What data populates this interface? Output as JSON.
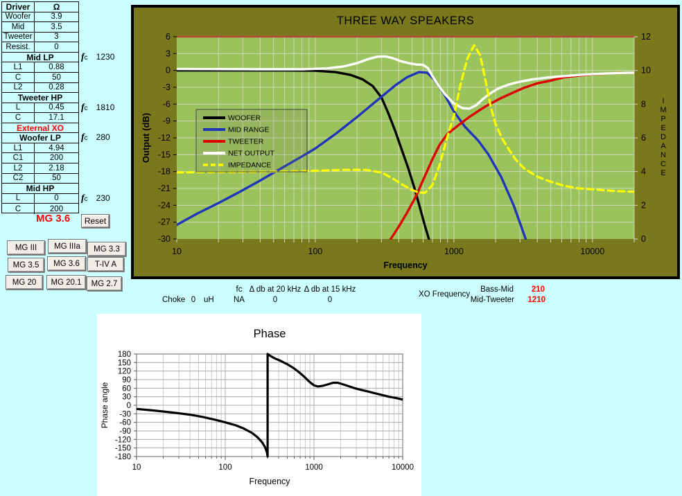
{
  "colors": {
    "page_bg": "#CCFFFF",
    "chart_bg": "#7A781D",
    "plot_bg": "#9BC35D",
    "grid_main": "#D9DDCE",
    "top_line": "#B5483A",
    "value_red": "#FF0000",
    "phase_grid": "#A8A8A8",
    "phase_grid_minor": "#BFBFBF"
  },
  "left_panel": {
    "table_rows": [
      {
        "type": "head",
        "c1": "Driver",
        "c2": "Ω"
      },
      {
        "type": "data",
        "c1": "Woofer",
        "c2": "3.9"
      },
      {
        "type": "data",
        "c1": "Mid",
        "c2": "3.5"
      },
      {
        "type": "data",
        "c1": "Tweeter",
        "c2": "3"
      },
      {
        "type": "data",
        "c1": "Resist.",
        "c2": "0"
      },
      {
        "type": "section",
        "label": "Mid LP"
      },
      {
        "type": "data",
        "c1": "L1",
        "c2": "0.88"
      },
      {
        "type": "data",
        "c1": "C",
        "c2": "50"
      },
      {
        "type": "data",
        "c1": "L2",
        "c2": "0.28"
      },
      {
        "type": "section",
        "label": "Tweeter HP"
      },
      {
        "type": "data",
        "c1": "L",
        "c2": "0.45"
      },
      {
        "type": "data",
        "c1": "C",
        "c2": "17.1"
      },
      {
        "type": "section-red",
        "label": "External XO"
      },
      {
        "type": "section",
        "label": "Woofer LP"
      },
      {
        "type": "data",
        "c1": "L1",
        "c2": "4.94"
      },
      {
        "type": "data",
        "c1": "C1",
        "c2": "200"
      },
      {
        "type": "data",
        "c1": "L2",
        "c2": "2.18"
      },
      {
        "type": "data",
        "c1": "C2",
        "c2": "50"
      },
      {
        "type": "section",
        "label": "Mid HP"
      },
      {
        "type": "data",
        "c1": "L",
        "c2": "0"
      },
      {
        "type": "data",
        "c1": "C",
        "c2": "200"
      }
    ],
    "fc_prefix": "f",
    "fc_sub": "c",
    "fc_values": [
      "1230",
      "1810",
      "280",
      "230"
    ],
    "model_label": "MG 3.6",
    "reset_label": "Reset",
    "model_buttons": [
      "MG III",
      "MG IIIa",
      "MG 3.3",
      "MG 3.5",
      "MG 3.6",
      "T-IV A",
      "MG 20",
      "MG 20.1",
      "MG 2.7"
    ]
  },
  "below_chart": {
    "choke_label": "Choke",
    "choke_value": "0",
    "choke_unit": "uH",
    "fc_label": "fc",
    "fc_value": "NA",
    "d20_label": "Δ db at 20 kHz",
    "d20_value": "0",
    "d15_label": "Δ db at 15 kHz",
    "d15_value": "0",
    "xo_label": "XO Frequency",
    "bass_mid_label": "Bass-Mid",
    "bass_mid_value": "210",
    "mid_tweeter_label": "Mid-Tweeter",
    "mid_tweeter_value": "1210"
  },
  "chart_data": [
    {
      "type": "line",
      "title": "THREE  WAY SPEAKERS",
      "xlabel": "Frequency",
      "ylabel": "Output (dB)",
      "y2label": "IMPEDANCE",
      "xscale": "log",
      "xlim": [
        10,
        20000
      ],
      "ylim": [
        -30,
        6
      ],
      "y2lim": [
        0,
        12
      ],
      "xticks": [
        10,
        100,
        1000,
        10000
      ],
      "yticks": [
        6,
        3,
        0,
        -3,
        -6,
        -9,
        -12,
        -15,
        -18,
        -21,
        -24,
        -27,
        -30
      ],
      "y2ticks": [
        12,
        10,
        8,
        6,
        4,
        2,
        0
      ],
      "grid": true,
      "legend_position": "upper-left-inside",
      "top_line_value": 6,
      "series": [
        {
          "name": "WOOFER",
          "color": "#000000",
          "dash": null,
          "axis": "y1",
          "points": [
            [
              10,
              0
            ],
            [
              60,
              0
            ],
            [
              100,
              -0.05
            ],
            [
              140,
              -0.3
            ],
            [
              180,
              -0.8
            ],
            [
              220,
              -1.6
            ],
            [
              260,
              -2.8
            ],
            [
              300,
              -4.8
            ],
            [
              335,
              -7.5
            ],
            [
              380,
              -11
            ],
            [
              430,
              -14.8
            ],
            [
              470,
              -17.5
            ],
            [
              520,
              -21
            ],
            [
              570,
              -24.5
            ],
            [
              615,
              -27.5
            ],
            [
              660,
              -30
            ]
          ]
        },
        {
          "name": "MID RANGE",
          "color": "#2233BB",
          "dash": null,
          "axis": "y1",
          "points": [
            [
              10,
              -27.5
            ],
            [
              14,
              -25.5
            ],
            [
              20,
              -23.6
            ],
            [
              28,
              -21.7
            ],
            [
              40,
              -19.6
            ],
            [
              56,
              -17.5
            ],
            [
              80,
              -15.3
            ],
            [
              100,
              -13.9
            ],
            [
              140,
              -11.3
            ],
            [
              200,
              -8.3
            ],
            [
              280,
              -5.3
            ],
            [
              380,
              -2.6
            ],
            [
              460,
              -1.2
            ],
            [
              560,
              -0.3
            ],
            [
              640,
              -0.4
            ],
            [
              720,
              -1.6
            ],
            [
              850,
              -4.2
            ],
            [
              1000,
              -7.3
            ],
            [
              1200,
              -10
            ],
            [
              1500,
              -12.5
            ],
            [
              1780,
              -15
            ],
            [
              2200,
              -19
            ],
            [
              2700,
              -24
            ],
            [
              3300,
              -30
            ]
          ]
        },
        {
          "name": "TWEETER",
          "color": "#DD0000",
          "dash": null,
          "axis": "y1",
          "points": [
            [
              350,
              -30
            ],
            [
              400,
              -27.8
            ],
            [
              460,
              -25.3
            ],
            [
              530,
              -22.5
            ],
            [
              600,
              -19.5
            ],
            [
              700,
              -15.8
            ],
            [
              790,
              -13.2
            ],
            [
              900,
              -11.3
            ],
            [
              1070,
              -9.8
            ],
            [
              1290,
              -8.3
            ],
            [
              1550,
              -7
            ],
            [
              1780,
              -6.1
            ],
            [
              2200,
              -4.9
            ],
            [
              2700,
              -3.9
            ],
            [
              3200,
              -3.1
            ],
            [
              4000,
              -2.3
            ],
            [
              5000,
              -1.8
            ],
            [
              6300,
              -1.2
            ],
            [
              8000,
              -0.9
            ],
            [
              10000,
              -0.7
            ],
            [
              14000,
              -0.5
            ],
            [
              20000,
              -0.4
            ]
          ]
        },
        {
          "name": "NET OUTPUT",
          "color": "#FFFFFF",
          "dash": null,
          "axis": "y1",
          "points": [
            [
              10,
              0.25
            ],
            [
              40,
              0.2
            ],
            [
              80,
              0.2
            ],
            [
              120,
              0.35
            ],
            [
              160,
              0.7
            ],
            [
              200,
              1.3
            ],
            [
              240,
              2
            ],
            [
              280,
              2.45
            ],
            [
              320,
              2.5
            ],
            [
              360,
              2.2
            ],
            [
              420,
              1.6
            ],
            [
              480,
              1.25
            ],
            [
              540,
              1.05
            ],
            [
              600,
              1
            ],
            [
              650,
              0.4
            ],
            [
              700,
              -1
            ],
            [
              780,
              -2.8
            ],
            [
              860,
              -4.2
            ],
            [
              1000,
              -5.9
            ],
            [
              1150,
              -6.7
            ],
            [
              1290,
              -6.8
            ],
            [
              1450,
              -6.2
            ],
            [
              1600,
              -5.2
            ],
            [
              1800,
              -4.2
            ],
            [
              2100,
              -3.2
            ],
            [
              2500,
              -2.5
            ],
            [
              3000,
              -2
            ],
            [
              3700,
              -1.6
            ],
            [
              5000,
              -1.2
            ],
            [
              6300,
              -1
            ],
            [
              8000,
              -0.8
            ],
            [
              10000,
              -0.65
            ],
            [
              14000,
              -0.5
            ],
            [
              20000,
              -0.4
            ]
          ]
        },
        {
          "name": "IMPEDANCE",
          "color": "#FFFF00",
          "dash": [
            9,
            6
          ],
          "axis": "y2",
          "points": [
            [
              10,
              3.95
            ],
            [
              50,
              4
            ],
            [
              100,
              4.05
            ],
            [
              160,
              4.1
            ],
            [
              230,
              4.1
            ],
            [
              300,
              3.95
            ],
            [
              360,
              3.6
            ],
            [
              430,
              3.2
            ],
            [
              500,
              2.9
            ],
            [
              560,
              2.75
            ],
            [
              620,
              2.75
            ],
            [
              700,
              3.2
            ],
            [
              790,
              4.4
            ],
            [
              900,
              6.1
            ],
            [
              1000,
              7.3
            ],
            [
              1120,
              9.2
            ],
            [
              1250,
              10.7
            ],
            [
              1400,
              11.5
            ],
            [
              1550,
              10.9
            ],
            [
              1700,
              9.3
            ],
            [
              1850,
              7.8
            ],
            [
              2000,
              6.8
            ],
            [
              2250,
              5.9
            ],
            [
              2500,
              5.3
            ],
            [
              2800,
              4.7
            ],
            [
              3200,
              4.2
            ],
            [
              4000,
              3.7
            ],
            [
              5000,
              3.4
            ],
            [
              6300,
              3.15
            ],
            [
              8000,
              3
            ],
            [
              10000,
              2.95
            ],
            [
              14000,
              2.85
            ],
            [
              20000,
              2.8
            ]
          ]
        }
      ]
    },
    {
      "type": "line",
      "title": "Phase",
      "xlabel": "Frequency",
      "ylabel": "Phase angle",
      "xscale": "log",
      "xlim": [
        10,
        10000
      ],
      "ylim": [
        -180,
        180
      ],
      "xticks": [
        10,
        100,
        1000,
        10000
      ],
      "yticks": [
        180,
        150,
        120,
        90,
        60,
        30,
        0,
        -30,
        -60,
        -90,
        -120,
        -150,
        -180
      ],
      "grid": true,
      "series": [
        {
          "name": "phase",
          "color": "#000000",
          "dash": null,
          "axis": "y1",
          "points": [
            [
              10,
              -13
            ],
            [
              14,
              -17
            ],
            [
              20,
              -22
            ],
            [
              28,
              -27
            ],
            [
              40,
              -33
            ],
            [
              56,
              -41
            ],
            [
              80,
              -52
            ],
            [
              100,
              -60
            ],
            [
              130,
              -70
            ],
            [
              160,
              -81
            ],
            [
              200,
              -97
            ],
            [
              230,
              -112
            ],
            [
              260,
              -130
            ],
            [
              280,
              -146
            ],
            [
              295,
              -165
            ],
            [
              300,
              -180
            ],
            [
              300,
              180
            ],
            [
              320,
              174
            ],
            [
              360,
              165
            ],
            [
              420,
              156
            ],
            [
              500,
              144
            ],
            [
              580,
              132
            ],
            [
              660,
              119
            ],
            [
              740,
              106
            ],
            [
              820,
              93
            ],
            [
              900,
              81
            ],
            [
              1000,
              70
            ],
            [
              1100,
              66
            ],
            [
              1250,
              68
            ],
            [
              1450,
              74
            ],
            [
              1650,
              79
            ],
            [
              1850,
              79
            ],
            [
              2100,
              74
            ],
            [
              2400,
              68
            ],
            [
              2800,
              61
            ],
            [
              3300,
              55
            ],
            [
              4000,
              49
            ],
            [
              5000,
              41
            ],
            [
              6000,
              35
            ],
            [
              7000,
              30
            ],
            [
              8500,
              25
            ],
            [
              10000,
              20
            ]
          ]
        }
      ]
    }
  ]
}
